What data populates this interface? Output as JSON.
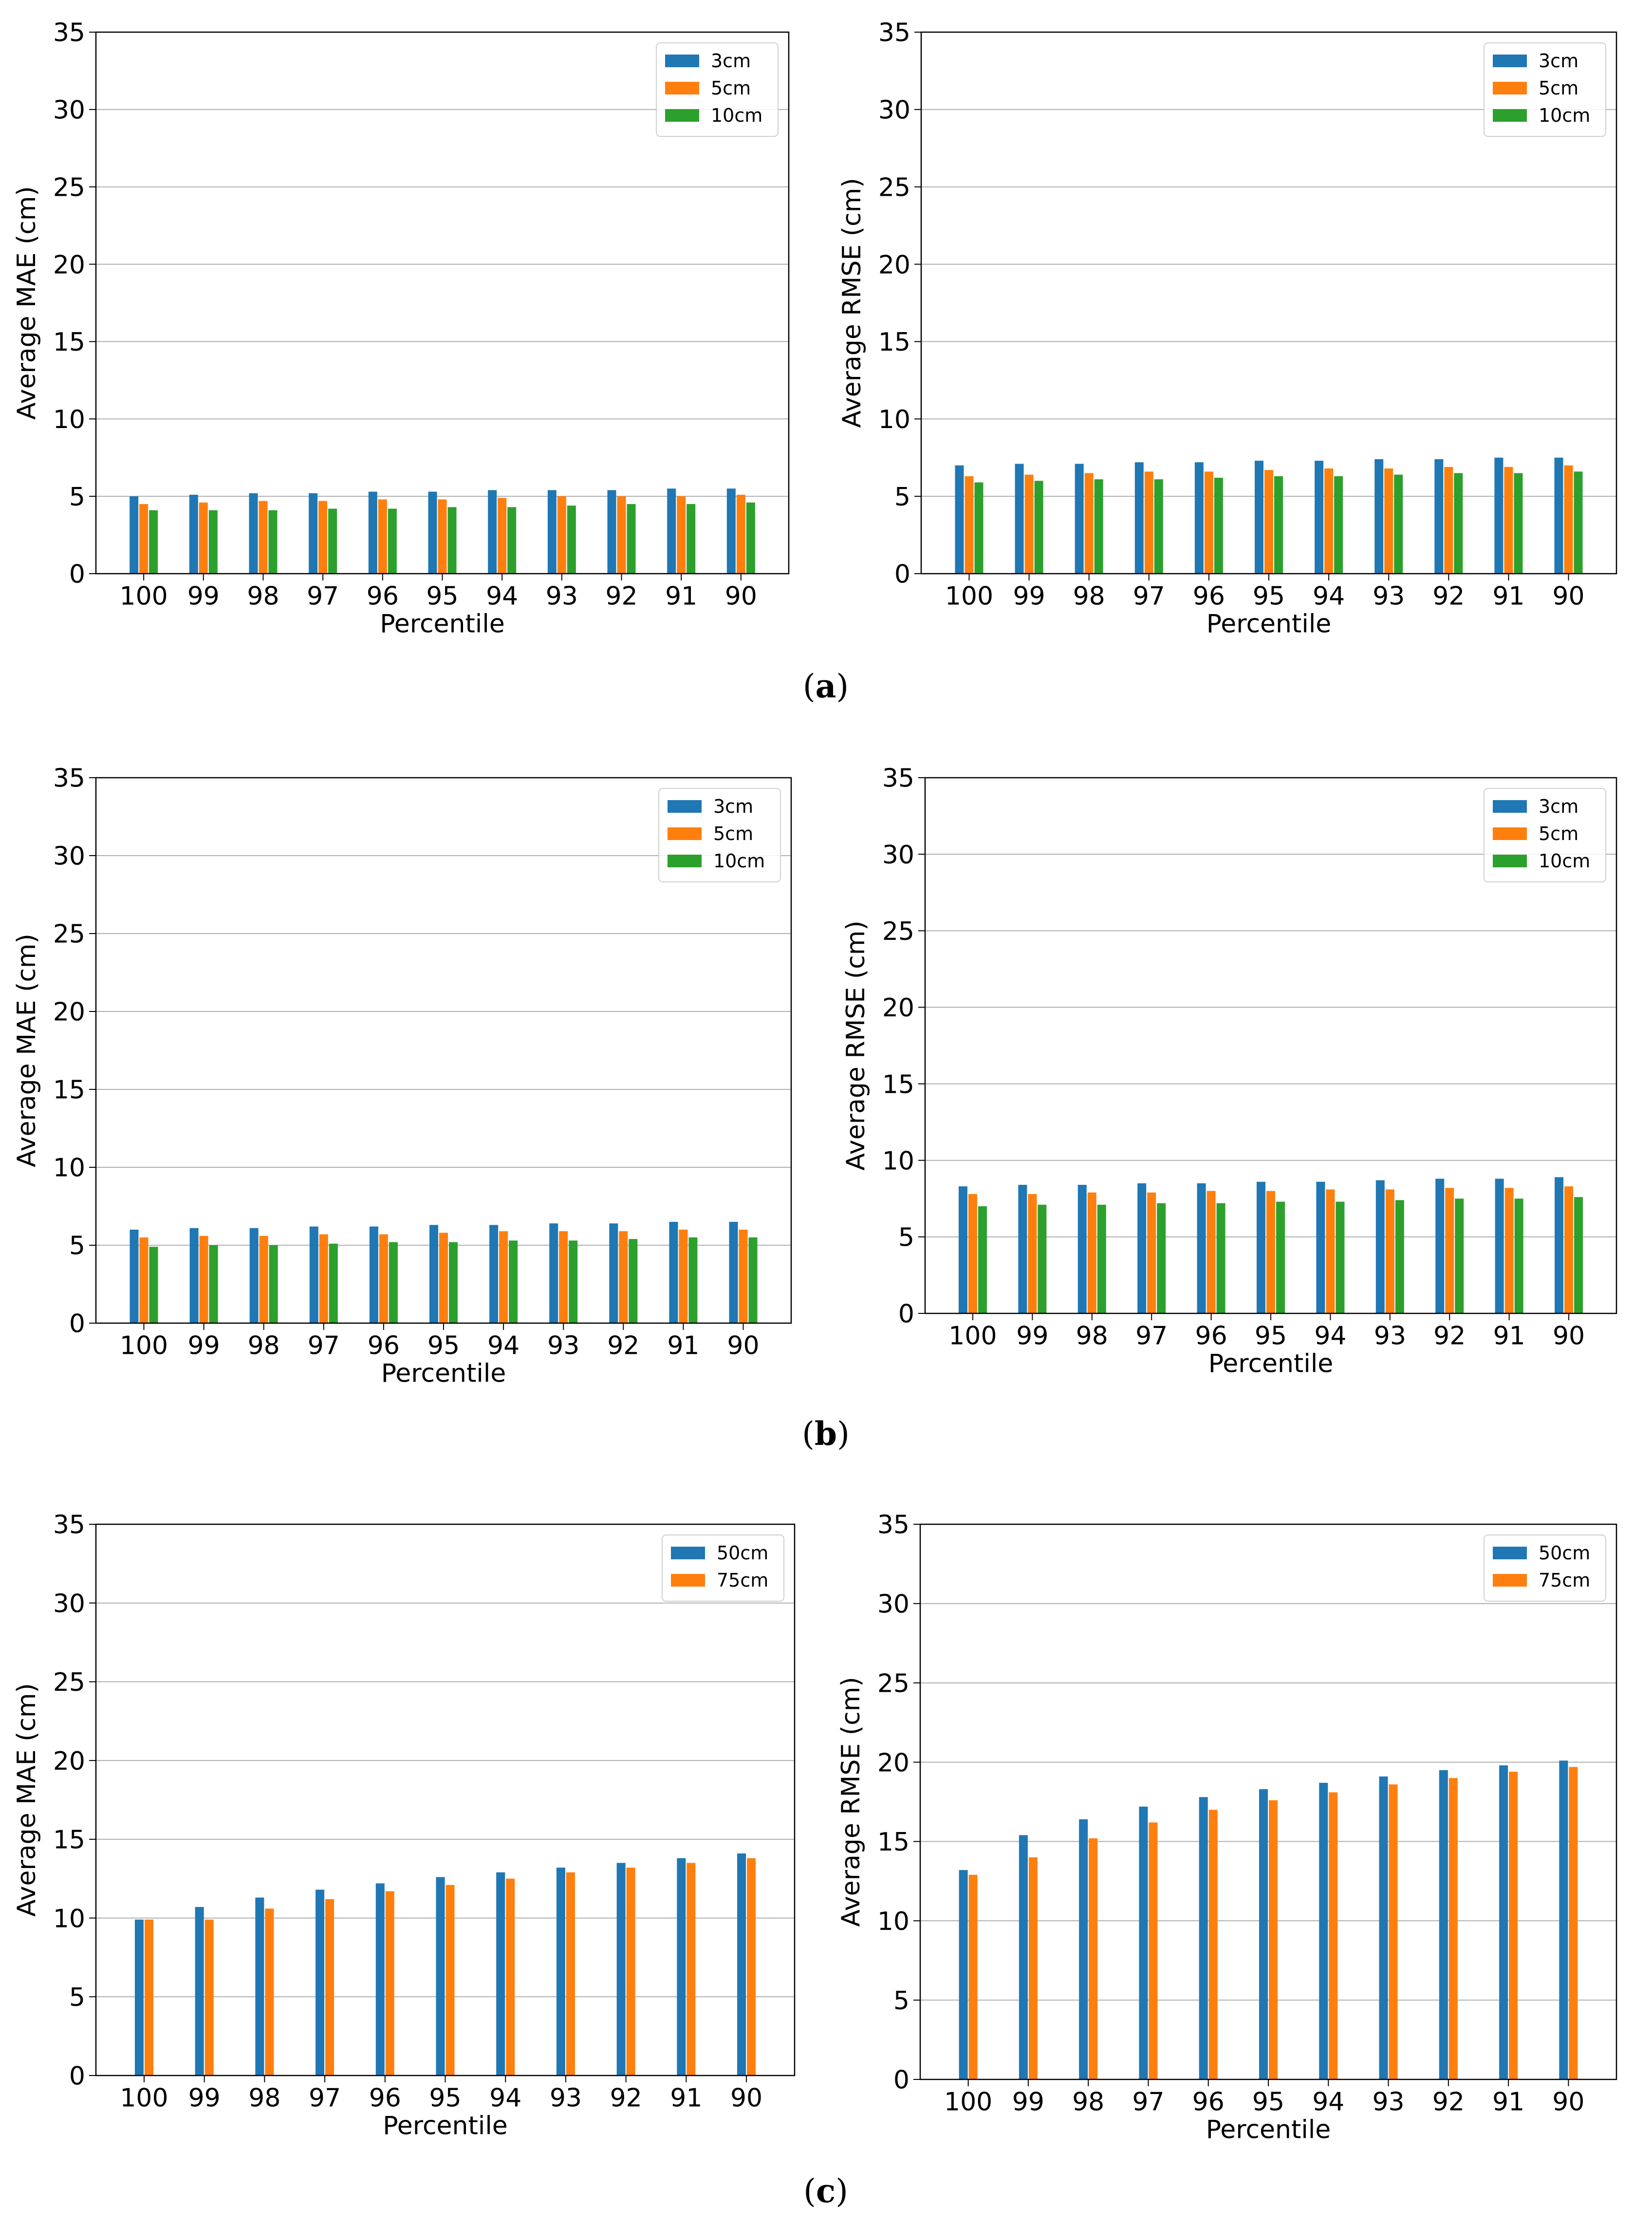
{
  "colors": {
    "3cm": "#1f77b4",
    "5cm": "#ff7f0e",
    "10cm": "#2ca02c",
    "50cm": "#1f77b4",
    "75cm": "#ff7f0e"
  },
  "captions": {
    "a_open": "(",
    "a_letter": "a",
    "a_close": ")",
    "b_open": "(",
    "b_letter": "b",
    "b_close": ")",
    "c_open": "(",
    "c_letter": "c",
    "c_close": ")"
  },
  "chart_data": [
    {
      "id": "a-mae",
      "type": "bar",
      "title": "",
      "xlabel": "Percentile",
      "ylabel": "Average MAE (cm)",
      "ylim": [
        0,
        35
      ],
      "yticks": [
        0,
        5,
        10,
        15,
        20,
        25,
        30,
        35
      ],
      "grid": true,
      "legend_position": "top-right",
      "categories": [
        "100",
        "99",
        "98",
        "97",
        "96",
        "95",
        "94",
        "93",
        "92",
        "91",
        "90"
      ],
      "series": [
        {
          "name": "3cm",
          "color_key": "3cm",
          "values": [
            5.0,
            5.1,
            5.2,
            5.2,
            5.3,
            5.3,
            5.4,
            5.4,
            5.4,
            5.5,
            5.5
          ]
        },
        {
          "name": "5cm",
          "color_key": "5cm",
          "values": [
            4.5,
            4.6,
            4.7,
            4.7,
            4.8,
            4.8,
            4.9,
            5.0,
            5.0,
            5.0,
            5.1
          ]
        },
        {
          "name": "10cm",
          "color_key": "10cm",
          "values": [
            4.1,
            4.1,
            4.1,
            4.2,
            4.2,
            4.3,
            4.3,
            4.4,
            4.5,
            4.5,
            4.6
          ]
        }
      ]
    },
    {
      "id": "a-rmse",
      "type": "bar",
      "title": "",
      "xlabel": "Percentile",
      "ylabel": "Average RMSE (cm)",
      "ylim": [
        0,
        35
      ],
      "yticks": [
        0,
        5,
        10,
        15,
        20,
        25,
        30,
        35
      ],
      "grid": true,
      "legend_position": "top-right",
      "categories": [
        "100",
        "99",
        "98",
        "97",
        "96",
        "95",
        "94",
        "93",
        "92",
        "91",
        "90"
      ],
      "series": [
        {
          "name": "3cm",
          "color_key": "3cm",
          "values": [
            7.0,
            7.1,
            7.1,
            7.2,
            7.2,
            7.3,
            7.3,
            7.4,
            7.4,
            7.5,
            7.5
          ]
        },
        {
          "name": "5cm",
          "color_key": "5cm",
          "values": [
            6.3,
            6.4,
            6.5,
            6.6,
            6.6,
            6.7,
            6.8,
            6.8,
            6.9,
            6.9,
            7.0
          ]
        },
        {
          "name": "10cm",
          "color_key": "10cm",
          "values": [
            5.9,
            6.0,
            6.1,
            6.1,
            6.2,
            6.3,
            6.3,
            6.4,
            6.5,
            6.5,
            6.6
          ]
        }
      ]
    },
    {
      "id": "b-mae",
      "type": "bar",
      "title": "",
      "xlabel": "Percentile",
      "ylabel": "Average MAE (cm)",
      "ylim": [
        0,
        35
      ],
      "yticks": [
        0,
        5,
        10,
        15,
        20,
        25,
        30,
        35
      ],
      "grid": true,
      "legend_position": "top-right",
      "categories": [
        "100",
        "99",
        "98",
        "97",
        "96",
        "95",
        "94",
        "93",
        "92",
        "91",
        "90"
      ],
      "series": [
        {
          "name": "3cm",
          "color_key": "3cm",
          "values": [
            6.0,
            6.1,
            6.1,
            6.2,
            6.2,
            6.3,
            6.3,
            6.4,
            6.4,
            6.5,
            6.5
          ]
        },
        {
          "name": "5cm",
          "color_key": "5cm",
          "values": [
            5.5,
            5.6,
            5.6,
            5.7,
            5.7,
            5.8,
            5.9,
            5.9,
            5.9,
            6.0,
            6.0
          ]
        },
        {
          "name": "10cm",
          "color_key": "10cm",
          "values": [
            4.9,
            5.0,
            5.0,
            5.1,
            5.2,
            5.2,
            5.3,
            5.3,
            5.4,
            5.5,
            5.5
          ]
        }
      ]
    },
    {
      "id": "b-rmse",
      "type": "bar",
      "title": "",
      "xlabel": "Percentile",
      "ylabel": "Average RMSE (cm)",
      "ylim": [
        0,
        35
      ],
      "yticks": [
        0,
        5,
        10,
        15,
        20,
        25,
        30,
        35
      ],
      "grid": true,
      "legend_position": "top-right",
      "categories": [
        "100",
        "99",
        "98",
        "97",
        "96",
        "95",
        "94",
        "93",
        "92",
        "91",
        "90"
      ],
      "series": [
        {
          "name": "3cm",
          "color_key": "3cm",
          "values": [
            8.3,
            8.4,
            8.4,
            8.5,
            8.5,
            8.6,
            8.6,
            8.7,
            8.8,
            8.8,
            8.9
          ]
        },
        {
          "name": "5cm",
          "color_key": "5cm",
          "values": [
            7.8,
            7.8,
            7.9,
            7.9,
            8.0,
            8.0,
            8.1,
            8.1,
            8.2,
            8.2,
            8.3
          ]
        },
        {
          "name": "10cm",
          "color_key": "10cm",
          "values": [
            7.0,
            7.1,
            7.1,
            7.2,
            7.2,
            7.3,
            7.3,
            7.4,
            7.5,
            7.5,
            7.6
          ]
        }
      ]
    },
    {
      "id": "c-mae",
      "type": "bar",
      "title": "",
      "xlabel": "Percentile",
      "ylabel": "Average MAE (cm)",
      "ylim": [
        0,
        35
      ],
      "yticks": [
        0,
        5,
        10,
        15,
        20,
        25,
        30,
        35
      ],
      "grid": true,
      "legend_position": "top-right",
      "categories": [
        "100",
        "99",
        "98",
        "97",
        "96",
        "95",
        "94",
        "93",
        "92",
        "91",
        "90"
      ],
      "series": [
        {
          "name": "50cm",
          "color_key": "50cm",
          "values": [
            9.9,
            10.7,
            11.3,
            11.8,
            12.2,
            12.6,
            12.9,
            13.2,
            13.5,
            13.8,
            14.1
          ]
        },
        {
          "name": "75cm",
          "color_key": "75cm",
          "values": [
            9.9,
            9.9,
            10.6,
            11.2,
            11.7,
            12.1,
            12.5,
            12.9,
            13.2,
            13.5,
            13.8
          ]
        }
      ]
    },
    {
      "id": "c-rmse",
      "type": "bar",
      "title": "",
      "xlabel": "Percentile",
      "ylabel": "Average RMSE (cm)",
      "ylim": [
        0,
        35
      ],
      "yticks": [
        0,
        5,
        10,
        15,
        20,
        25,
        30,
        35
      ],
      "grid": true,
      "legend_position": "top-right",
      "categories": [
        "100",
        "99",
        "98",
        "97",
        "96",
        "95",
        "94",
        "93",
        "92",
        "91",
        "90"
      ],
      "series": [
        {
          "name": "50cm",
          "color_key": "50cm",
          "values": [
            13.2,
            15.4,
            16.4,
            17.2,
            17.8,
            18.3,
            18.7,
            19.1,
            19.5,
            19.8,
            20.1
          ]
        },
        {
          "name": "75cm",
          "color_key": "75cm",
          "values": [
            12.9,
            14.0,
            15.2,
            16.2,
            17.0,
            17.6,
            18.1,
            18.6,
            19.0,
            19.4,
            19.7
          ]
        }
      ]
    }
  ]
}
